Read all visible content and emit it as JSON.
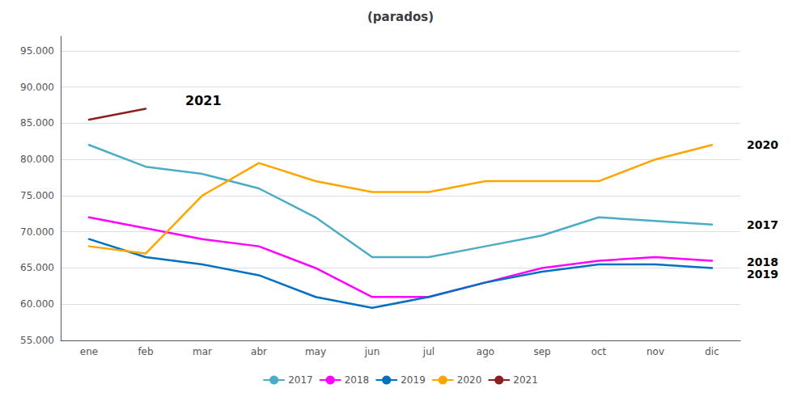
{
  "chart_data": {
    "type": "line",
    "title": "(parados)",
    "categories": [
      "ene",
      "feb",
      "mar",
      "abr",
      "may",
      "jun",
      "jul",
      "ago",
      "sep",
      "oct",
      "nov",
      "dic"
    ],
    "series": [
      {
        "name": "2017",
        "color": "#4BACC6",
        "values": [
          82000,
          79000,
          78000,
          76000,
          72000,
          66500,
          66500,
          68000,
          69500,
          72000,
          71500,
          71000
        ]
      },
      {
        "name": "2018",
        "color": "#FF00FF",
        "values": [
          72000,
          70500,
          69000,
          68000,
          65000,
          61000,
          61000,
          63000,
          65000,
          66000,
          66500,
          66000
        ]
      },
      {
        "name": "2019",
        "color": "#0070C0",
        "values": [
          69000,
          66500,
          65500,
          64000,
          61000,
          59500,
          61000,
          63000,
          64500,
          65500,
          65500,
          65000
        ]
      },
      {
        "name": "2020",
        "color": "#FFA500",
        "values": [
          68000,
          67000,
          75000,
          79500,
          77000,
          75500,
          75500,
          77000,
          77000,
          77000,
          80000,
          82000
        ]
      },
      {
        "name": "2021",
        "color": "#8B2020",
        "values": [
          85500,
          87000,
          null,
          null,
          null,
          null,
          null,
          null,
          null,
          null,
          null,
          null
        ]
      }
    ],
    "ylim": [
      55000,
      97000
    ],
    "yticks": [
      {
        "value": 55000,
        "label": "55.000"
      },
      {
        "value": 60000,
        "label": "60.000"
      },
      {
        "value": 65000,
        "label": "65.000"
      },
      {
        "value": 70000,
        "label": "70.000"
      },
      {
        "value": 75000,
        "label": "75.000"
      },
      {
        "value": 80000,
        "label": "80.000"
      },
      {
        "value": 85000,
        "label": "85.000"
      },
      {
        "value": 90000,
        "label": "90.000"
      },
      {
        "value": 95000,
        "label": "95.000"
      }
    ],
    "grid": true,
    "legend": "bottom",
    "annotations": [
      {
        "text": "2021",
        "x": 1.7,
        "y": 87200
      },
      {
        "text": "2020",
        "y": 82000
      },
      {
        "text": "2017",
        "y": 71000
      },
      {
        "text": "2018",
        "y": 65800
      },
      {
        "text": "2019",
        "y": 64200
      }
    ]
  }
}
